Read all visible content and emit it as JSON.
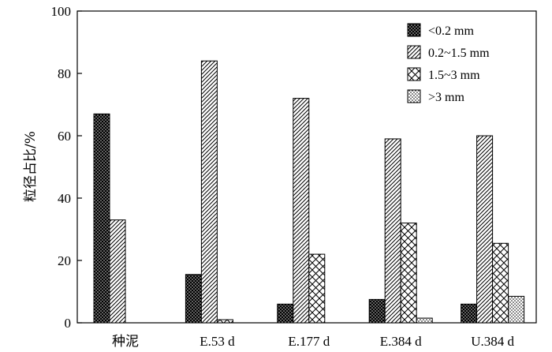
{
  "chart_data": {
    "type": "bar",
    "title": "",
    "xlabel": "",
    "ylabel": "粒径占比/%",
    "ylim": [
      0,
      100
    ],
    "yticks": [
      0,
      20,
      40,
      60,
      80,
      100
    ],
    "grid": false,
    "legend_position": "top-right",
    "categories": [
      "种泥",
      "E.53 d",
      "E.177 d",
      "E.384 d",
      "U.384 d"
    ],
    "series": [
      {
        "name": "<0.2 mm",
        "values": [
          67,
          15.5,
          6,
          7.5,
          6
        ],
        "pattern": "dense-crosshatch"
      },
      {
        "name": "0.2~1.5 mm",
        "values": [
          33,
          84,
          72,
          59,
          60
        ],
        "pattern": "diagonal"
      },
      {
        "name": "1.5~3 mm",
        "values": [
          0,
          1,
          22,
          32,
          25.5
        ],
        "pattern": "open-crosshatch"
      },
      {
        "name": ">3 mm",
        "values": [
          0,
          0,
          0,
          1.5,
          8.5
        ],
        "pattern": "dots"
      }
    ],
    "colors": {
      "stroke": "#000000",
      "background": "#ffffff"
    }
  }
}
